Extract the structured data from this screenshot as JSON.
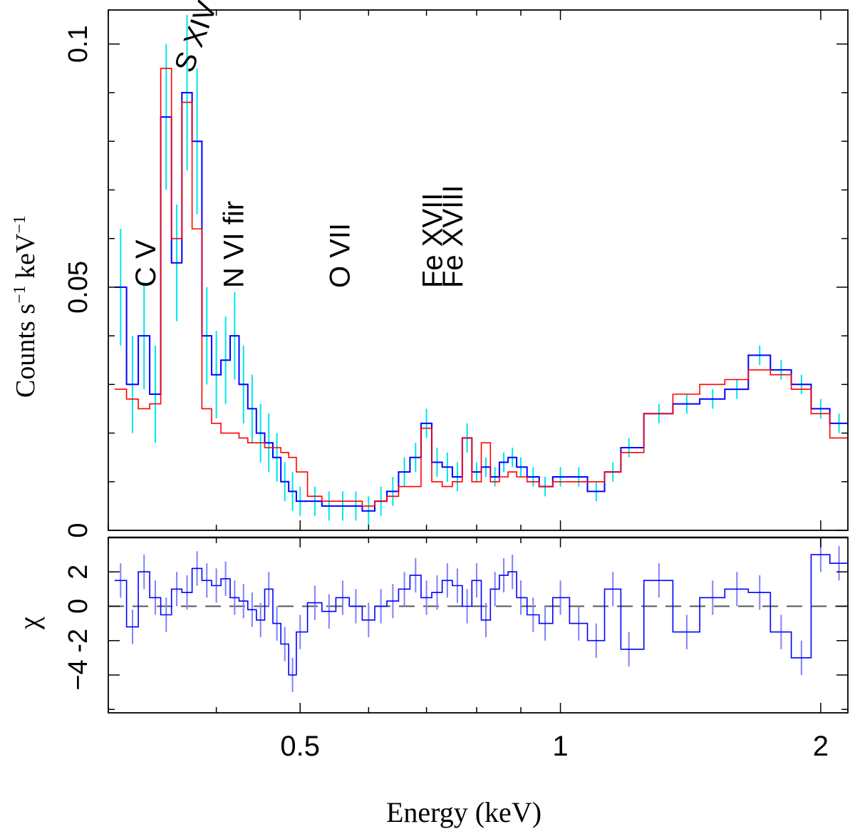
{
  "chart_data": {
    "type": "line",
    "xlabel": "Energy (keV)",
    "x_scale": "log",
    "xlim": [
      0.3,
      2.15
    ],
    "x_tick_labels": [
      {
        "value": 0.5,
        "label": "0.5"
      },
      {
        "value": 1,
        "label": "1"
      },
      {
        "value": 2,
        "label": "2"
      }
    ],
    "x_minor_ticks": [
      0.3,
      0.4,
      0.6,
      0.7,
      0.8,
      0.9
    ],
    "colors": {
      "data": "#0000ff",
      "errors": "#00e5ee",
      "model": "#ff0000",
      "residual_errors": "#8080ff",
      "zero_line": "#555555"
    },
    "panels": [
      {
        "name": "spectrum",
        "ylabel": "Counts s",
        "ylabel_sup1": "−1",
        "ylabel_mid": " keV",
        "ylabel_sup2": "−1",
        "ylim": [
          0,
          0.107
        ],
        "y_tick_labels": [
          {
            "value": 0,
            "label": "0"
          },
          {
            "value": 0.05,
            "label": "0.05"
          },
          {
            "value": 0.1,
            "label": "0.1"
          }
        ],
        "y_minor_ticks": [
          0.01,
          0.02,
          0.03,
          0.04,
          0.06,
          0.07,
          0.08,
          0.09
        ],
        "series": [
          {
            "name": "data",
            "x": [
              0.31,
              0.32,
              0.33,
              0.34,
              0.35,
              0.36,
              0.37,
              0.38,
              0.39,
              0.4,
              0.41,
              0.42,
              0.43,
              0.44,
              0.45,
              0.46,
              0.47,
              0.48,
              0.49,
              0.5,
              0.52,
              0.54,
              0.56,
              0.58,
              0.6,
              0.62,
              0.64,
              0.66,
              0.68,
              0.7,
              0.72,
              0.74,
              0.76,
              0.78,
              0.8,
              0.82,
              0.84,
              0.86,
              0.88,
              0.9,
              0.93,
              0.96,
              1.0,
              1.05,
              1.1,
              1.15,
              1.2,
              1.3,
              1.4,
              1.5,
              1.6,
              1.7,
              1.8,
              1.9,
              2.0,
              2.1
            ],
            "y": [
              0.05,
              0.03,
              0.04,
              0.028,
              0.085,
              0.055,
              0.09,
              0.08,
              0.04,
              0.032,
              0.035,
              0.04,
              0.03,
              0.025,
              0.02,
              0.018,
              0.015,
              0.01,
              0.008,
              0.006,
              0.006,
              0.005,
              0.005,
              0.005,
              0.004,
              0.006,
              0.008,
              0.012,
              0.015,
              0.022,
              0.014,
              0.013,
              0.011,
              0.019,
              0.012,
              0.013,
              0.011,
              0.014,
              0.015,
              0.013,
              0.011,
              0.009,
              0.011,
              0.011,
              0.008,
              0.012,
              0.017,
              0.024,
              0.026,
              0.027,
              0.029,
              0.036,
              0.033,
              0.03,
              0.025,
              0.022
            ],
            "yerr": [
              0.012,
              0.01,
              0.011,
              0.01,
              0.015,
              0.012,
              0.016,
              0.015,
              0.01,
              0.009,
              0.009,
              0.009,
              0.008,
              0.007,
              0.006,
              0.006,
              0.005,
              0.004,
              0.004,
              0.003,
              0.003,
              0.003,
              0.003,
              0.003,
              0.003,
              0.003,
              0.003,
              0.003,
              0.003,
              0.003,
              0.003,
              0.003,
              0.003,
              0.003,
              0.002,
              0.002,
              0.002,
              0.002,
              0.002,
              0.002,
              0.002,
              0.002,
              0.002,
              0.002,
              0.002,
              0.002,
              0.002,
              0.002,
              0.002,
              0.002,
              0.002,
              0.002,
              0.002,
              0.002,
              0.002,
              0.002
            ]
          },
          {
            "name": "model",
            "x": [
              0.31,
              0.32,
              0.33,
              0.34,
              0.35,
              0.36,
              0.37,
              0.38,
              0.39,
              0.4,
              0.41,
              0.42,
              0.43,
              0.44,
              0.45,
              0.46,
              0.47,
              0.48,
              0.49,
              0.5,
              0.52,
              0.54,
              0.56,
              0.58,
              0.6,
              0.62,
              0.64,
              0.66,
              0.68,
              0.7,
              0.72,
              0.74,
              0.76,
              0.78,
              0.8,
              0.82,
              0.84,
              0.86,
              0.88,
              0.9,
              0.93,
              0.96,
              1.0,
              1.05,
              1.1,
              1.15,
              1.2,
              1.3,
              1.4,
              1.5,
              1.6,
              1.7,
              1.8,
              1.9,
              2.0,
              2.1
            ],
            "y": [
              0.029,
              0.027,
              0.025,
              0.026,
              0.095,
              0.06,
              0.088,
              0.062,
              0.025,
              0.022,
              0.02,
              0.02,
              0.019,
              0.018,
              0.018,
              0.017,
              0.017,
              0.016,
              0.015,
              0.012,
              0.007,
              0.006,
              0.006,
              0.006,
              0.005,
              0.006,
              0.007,
              0.009,
              0.009,
              0.021,
              0.01,
              0.009,
              0.01,
              0.019,
              0.01,
              0.018,
              0.01,
              0.011,
              0.012,
              0.011,
              0.01,
              0.009,
              0.01,
              0.01,
              0.01,
              0.012,
              0.016,
              0.024,
              0.028,
              0.03,
              0.031,
              0.033,
              0.032,
              0.029,
              0.024,
              0.019
            ]
          }
        ],
        "annotations": [
          {
            "text": "C V",
            "x": 0.34
          },
          {
            "text": "S XIV",
            "x": 0.375
          },
          {
            "text": "N VI fir",
            "x": 0.43
          },
          {
            "text": "O VII",
            "x": 0.57
          },
          {
            "text": "Fe XVII",
            "x": 0.73
          },
          {
            "text": "Fe XVIII",
            "x": 0.77
          }
        ]
      },
      {
        "name": "residuals",
        "ylabel": "χ",
        "ylim": [
          -6.2,
          4.0
        ],
        "y_tick_labels": [
          {
            "value": 2,
            "label": "2"
          },
          {
            "value": 0,
            "label": "0"
          },
          {
            "value": -2,
            "label": "-2"
          },
          {
            "value": -4,
            "label": "−4"
          }
        ],
        "y_minor_ticks": [
          4,
          -6
        ],
        "series": [
          {
            "name": "residuals",
            "x": [
              0.31,
              0.32,
              0.33,
              0.34,
              0.35,
              0.36,
              0.37,
              0.38,
              0.39,
              0.4,
              0.41,
              0.42,
              0.43,
              0.44,
              0.45,
              0.46,
              0.47,
              0.48,
              0.49,
              0.5,
              0.52,
              0.54,
              0.56,
              0.58,
              0.6,
              0.62,
              0.64,
              0.66,
              0.68,
              0.7,
              0.72,
              0.74,
              0.76,
              0.78,
              0.8,
              0.82,
              0.84,
              0.86,
              0.88,
              0.9,
              0.93,
              0.96,
              1.0,
              1.05,
              1.1,
              1.15,
              1.2,
              1.3,
              1.4,
              1.5,
              1.6,
              1.7,
              1.8,
              1.9,
              2.0,
              2.1
            ],
            "y": [
              1.5,
              -1.2,
              2.0,
              0.5,
              -0.5,
              1.0,
              0.8,
              2.2,
              1.5,
              1.2,
              1.6,
              0.5,
              0.3,
              -0.2,
              -0.8,
              1.0,
              -1.0,
              -2.2,
              -4.0,
              -1.5,
              0.2,
              -0.3,
              0.5,
              0.0,
              -0.8,
              0.0,
              0.3,
              1.0,
              1.8,
              0.5,
              0.8,
              1.5,
              1.2,
              0.0,
              1.5,
              -0.8,
              1.0,
              1.8,
              2.0,
              0.5,
              -0.5,
              -1.0,
              0.5,
              -1.0,
              -2.0,
              1.0,
              -2.5,
              1.5,
              -1.5,
              0.5,
              1.0,
              0.8,
              -1.5,
              -3.0,
              3.0,
              2.5
            ],
            "yerr": [
              1.0,
              1.0,
              1.0,
              1.0,
              1.0,
              1.0,
              1.0,
              1.0,
              1.0,
              1.0,
              1.0,
              1.0,
              1.0,
              1.0,
              1.0,
              1.0,
              1.0,
              1.0,
              1.0,
              1.0,
              1.0,
              1.0,
              1.0,
              1.0,
              1.0,
              1.0,
              1.0,
              1.0,
              1.0,
              1.0,
              1.0,
              1.0,
              1.0,
              1.0,
              1.0,
              1.0,
              1.0,
              1.0,
              1.0,
              1.0,
              1.0,
              1.0,
              1.0,
              1.0,
              1.0,
              1.0,
              1.0,
              1.0,
              1.0,
              1.0,
              1.0,
              1.0,
              1.0,
              1.0,
              1.0,
              1.0
            ]
          }
        ]
      }
    ]
  }
}
